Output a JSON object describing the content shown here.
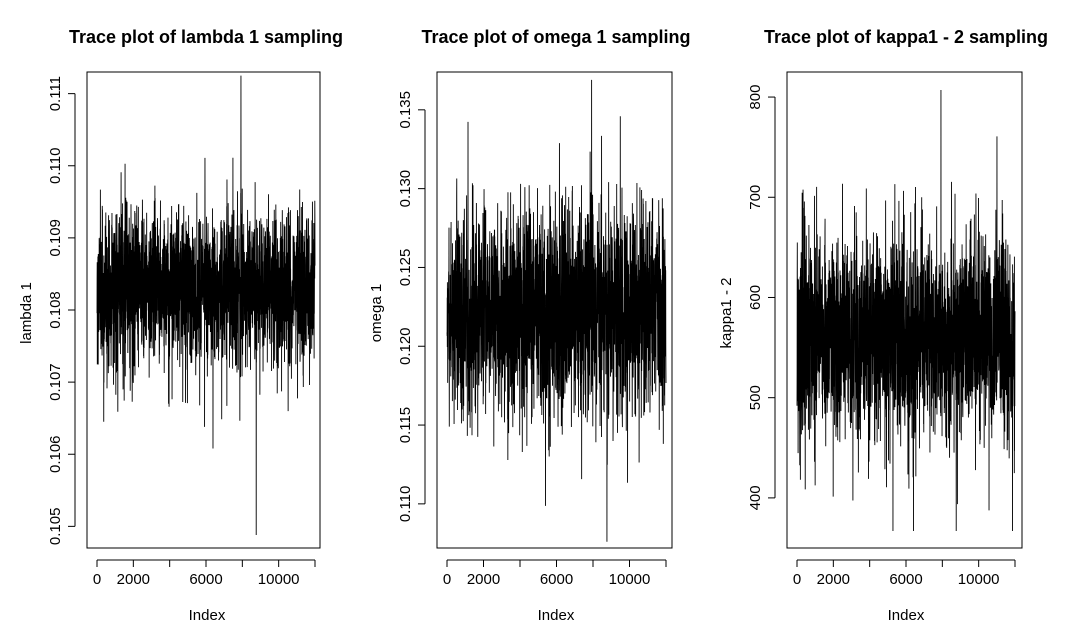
{
  "chart_data": [
    {
      "type": "line",
      "title": "Trace plot of lambda 1 sampling",
      "xlabel": "Index",
      "ylabel": "lambda 1",
      "xlim": [
        0,
        12000
      ],
      "ylim": [
        0.1047,
        0.1113
      ],
      "x_ticks": [
        0,
        2000,
        6000,
        10000
      ],
      "y_ticks": [
        0.105,
        0.106,
        0.107,
        0.108,
        0.109,
        0.11,
        0.111
      ],
      "y_tick_labels": [
        "0.105",
        "0.106",
        "0.107",
        "0.108",
        "0.109",
        "0.110",
        "0.111"
      ],
      "series_summary": {
        "n": 12000,
        "mean": 0.10832,
        "sd": 0.00055,
        "min": 0.10488,
        "max": 0.11125
      }
    },
    {
      "type": "line",
      "title": "Trace plot of omega 1 sampling",
      "xlabel": "Index",
      "ylabel": "omega 1",
      "xlim": [
        0,
        12000
      ],
      "ylim": [
        0.1072,
        0.1374
      ],
      "x_ticks": [
        0,
        2000,
        6000,
        10000
      ],
      "y_ticks": [
        0.11,
        0.115,
        0.12,
        0.125,
        0.13,
        0.135
      ],
      "y_tick_labels": [
        "0.110",
        "0.115",
        "0.120",
        "0.125",
        "0.130",
        "0.135"
      ],
      "series_summary": {
        "n": 12000,
        "mean": 0.1222,
        "sd": 0.0032,
        "min": 0.1076,
        "max": 0.1369
      }
    },
    {
      "type": "line",
      "title": "Trace plot of kappa1 - 2 sampling",
      "xlabel": "Index",
      "ylabel": "kappa1 - 2",
      "xlim": [
        0,
        12000
      ],
      "ylim": [
        350,
        825
      ],
      "x_ticks": [
        0,
        2000,
        6000,
        10000
      ],
      "y_ticks": [
        400,
        500,
        600,
        700,
        800
      ],
      "y_tick_labels": [
        "400",
        "500",
        "600",
        "700",
        "800"
      ],
      "series_summary": {
        "n": 12000,
        "mean": 560,
        "sd": 50,
        "min": 367,
        "max": 807
      }
    }
  ]
}
